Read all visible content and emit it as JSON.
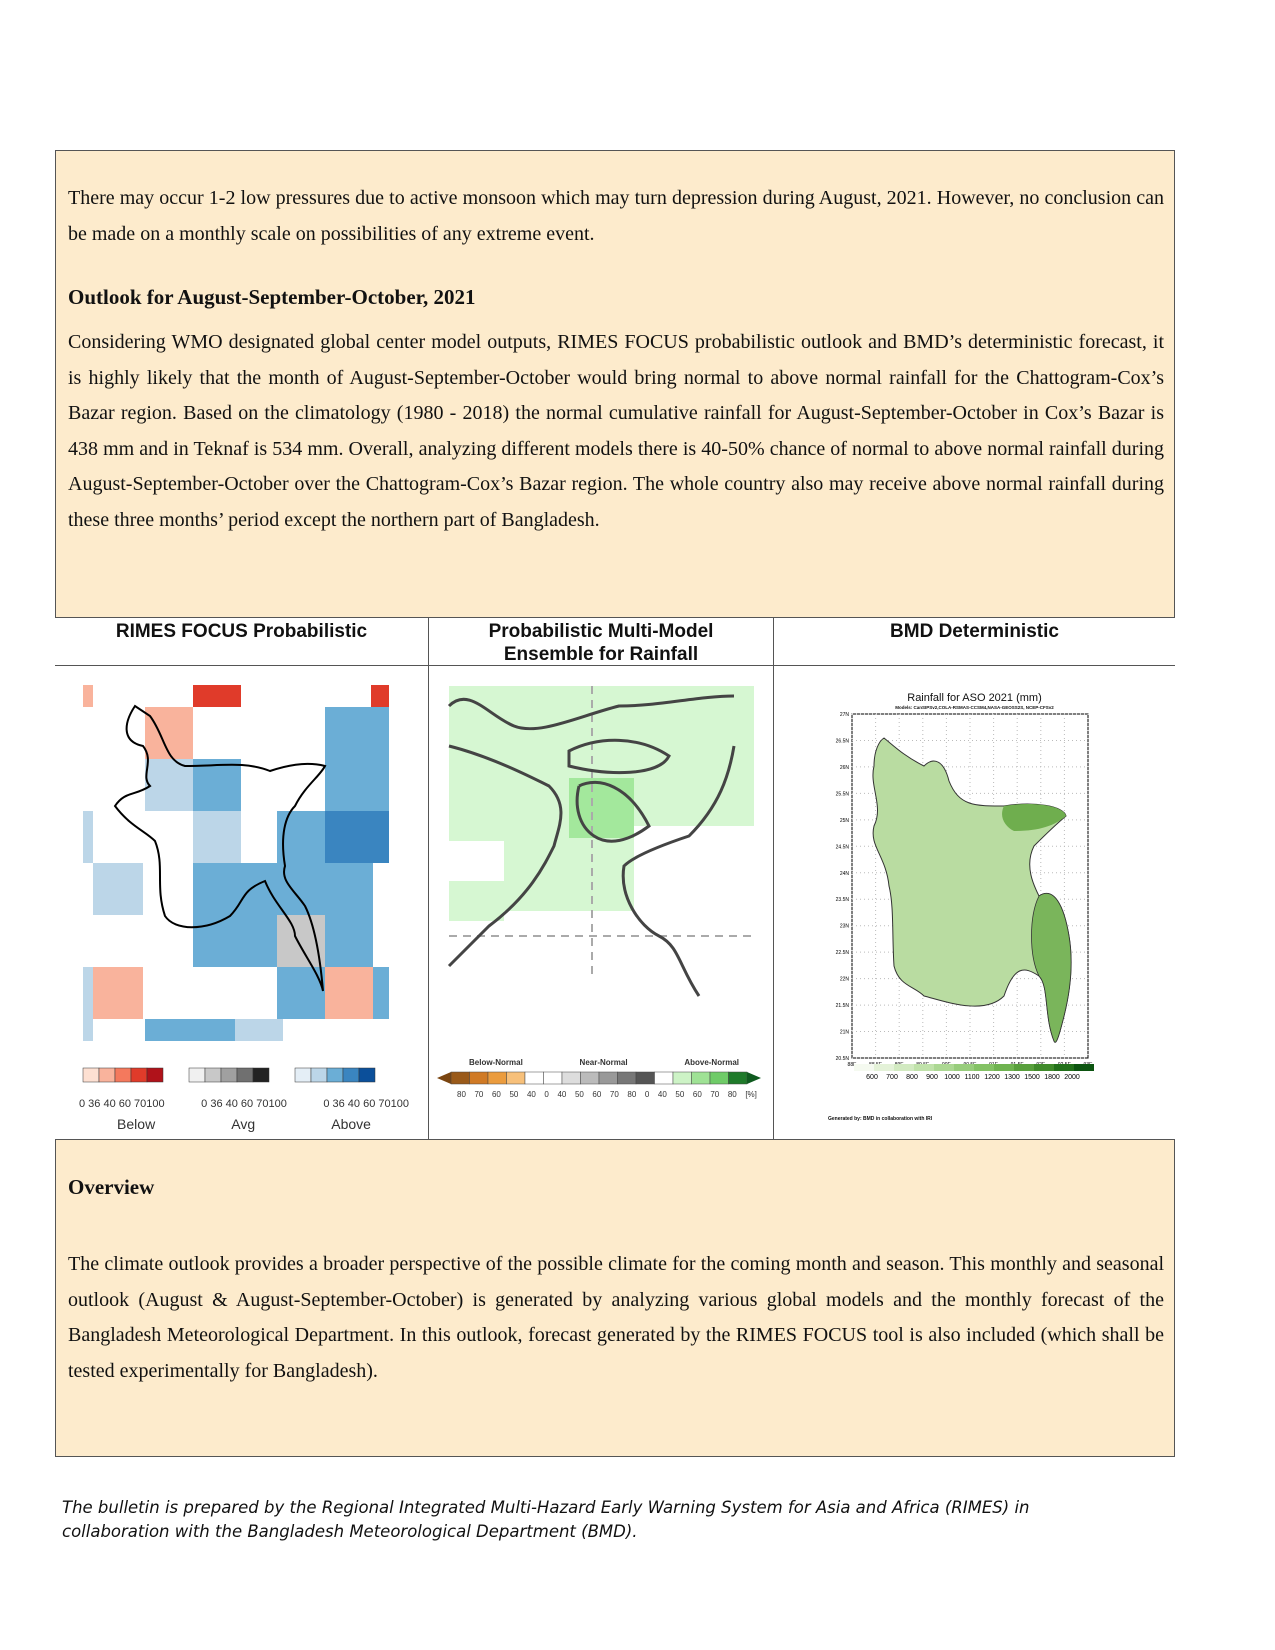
{
  "intro_paragraph": "There may occur 1-2 low pressures due to active monsoon which may turn depression during August, 2021. However, no conclusion can be made on a monthly scale on possibilities of any extreme event.",
  "outlook": {
    "heading": "Outlook for August-September-October, 2021",
    "paragraph": "Considering WMO designated global center model outputs, RIMES FOCUS probabilistic outlook and BMD’s deterministic forecast, it is highly likely that the month of August-September-October would bring normal to above normal rainfall for the Chattogram-Cox’s Bazar region. Based on the climatology (1980 - 2018) the normal cumulative rainfall for August-September-October in Cox’s Bazar is 438 mm and in Teknaf is 534 mm. Overall, analyzing different models there is 40-50% chance of normal to above normal rainfall during August-September-October over the Chattogram-Cox’s Bazar region. The whole country also may receive above normal rainfall during these three months’ period except the northern part of Bangladesh."
  },
  "maps": {
    "rimes": {
      "header": "RIMES FOCUS Probabilistic",
      "legend_ticks": "0 36 40 60 70100",
      "legends": [
        "Below",
        "Avg",
        "Above"
      ],
      "colors": {
        "below": [
          "#fde0d2",
          "#f9b39c",
          "#f4795d",
          "#e03b2a",
          "#b0121a"
        ],
        "avg": [
          "#f0f0f0",
          "#c8c8c8",
          "#a0a0a0",
          "#707070",
          "#222222"
        ],
        "above": [
          "#e4eef6",
          "#bcd6e8",
          "#6baed6",
          "#3a85c0",
          "#0b4f9a"
        ]
      }
    },
    "pmme": {
      "header_line1": "Probabilistic Multi-Model",
      "header_line2": "Ensemble for Rainfall",
      "legend_groups": [
        "Below-Normal",
        "Near-Normal",
        "Above-Normal"
      ],
      "legend_ticks": [
        "80",
        "70",
        "60",
        "50",
        "40",
        "0",
        "40",
        "50",
        "60",
        "70",
        "80",
        "0",
        "40",
        "50",
        "60",
        "70",
        "80",
        "[%]"
      ]
    },
    "bmd": {
      "header": "BMD Deterministic",
      "title": "Rainfall for ASO 2021 (mm)",
      "subtitle": "Models: CanSIPSv2,COLA-RSMAS-CCSM4,NASA-GEOSS2S, NCEP-CFSv2",
      "lat_ticks": [
        "27N",
        "26.5N",
        "26N",
        "25.5N",
        "25N",
        "24.5N",
        "24N",
        "23.5N",
        "23N",
        "22.5N",
        "22N",
        "21.5N",
        "21N",
        "20.5N"
      ],
      "lon_ticks": [
        "88E",
        "88.5E",
        "89E",
        "89.5E",
        "90E",
        "90.5E",
        "91E",
        "91.5E",
        "92E",
        "92.5E",
        "93E"
      ],
      "legend_ticks": [
        "600",
        "700",
        "800",
        "900",
        "1000",
        "1100",
        "1200",
        "1300",
        "1500",
        "1800",
        "2000"
      ],
      "credit": "Generated by: BMD in collaboration with IRI"
    }
  },
  "overview": {
    "heading": "Overview",
    "paragraph": "The climate outlook provides a broader perspective of the possible climate for the coming month and season. This monthly and seasonal outlook (August & August-September-October) is generated by analyzing various global models and the monthly forecast of the Bangladesh Meteorological Department. In this outlook, forecast generated by the RIMES FOCUS tool is also included (which shall be tested experimentally for Bangladesh)."
  },
  "footer": "The bulletin is prepared by the Regional Integrated Multi-Hazard Early Warning System for Asia and Africa (RIMES) in collaboration with the Bangladesh Meteorological Department (BMD)."
}
